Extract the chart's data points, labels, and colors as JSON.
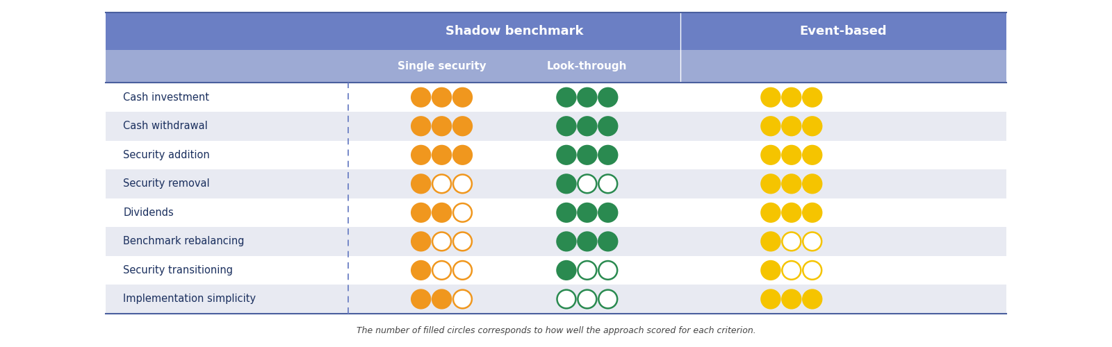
{
  "title_row1": "Shadow benchmark",
  "title_row2": "Event-based",
  "subheaders": [
    "Single security",
    "Look-through"
  ],
  "row_labels": [
    "Cash investment",
    "Cash withdrawal",
    "Security addition",
    "Security removal",
    "Dividends",
    "Benchmark rebalancing",
    "Security transitioning",
    "Implementation simplicity"
  ],
  "header_bg": "#6b7fc4",
  "subheader_bg": "#9daad4",
  "row_bg_white": "#ffffff",
  "row_bg_light": "#e8eaf2",
  "header_text_color": "#ffffff",
  "label_text_color": "#1a2f5e",
  "orange_color": "#f0971e",
  "green_color": "#2a8a50",
  "yellow_color": "#f5c400",
  "scores": {
    "single_security": [
      3,
      3,
      3,
      1,
      2,
      1,
      1,
      2
    ],
    "look_through": [
      3,
      3,
      3,
      1,
      3,
      3,
      1,
      0
    ],
    "event_based": [
      3,
      3,
      3,
      3,
      3,
      1,
      1,
      3
    ]
  },
  "max_circles": 3,
  "footer_text": "The number of filled circles corresponds to how well the approach scored for each criterion.",
  "figsize": [
    16,
    5
  ]
}
